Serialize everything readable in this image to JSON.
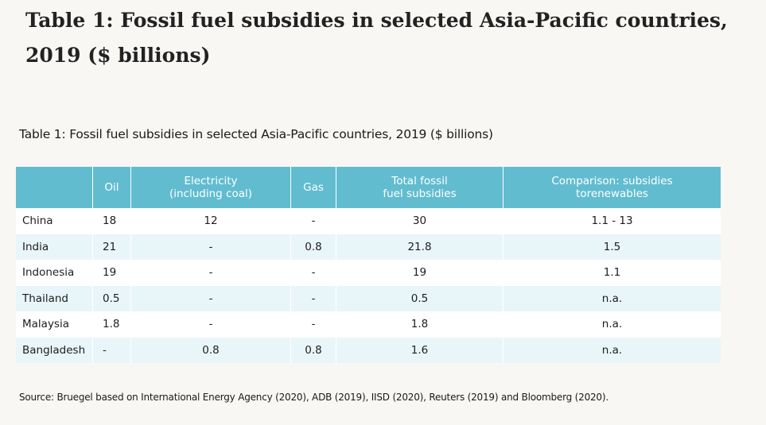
{
  "heading": "Table 1: Fossil fuel subsidies in selected Asia-Pacific countries, 2019 ($ billions)",
  "table": {
    "caption": "Table 1: Fossil fuel subsidies in selected Asia-Pacific countries, 2019 ($ billions)",
    "columns": [
      "",
      "Oil",
      "Electricity (including coal)",
      "Gas",
      "Total fossil fuel subsidies",
      "Comparison: subsidies torenewables"
    ],
    "rows": [
      [
        "China",
        "18",
        "12",
        "-",
        "30",
        "1.1 - 13"
      ],
      [
        "India",
        "21",
        "-",
        "0.8",
        "21.8",
        "1.5"
      ],
      [
        "Indonesia",
        "19",
        "-",
        "-",
        "19",
        "1.1"
      ],
      [
        "Thailand",
        "0.5",
        "-",
        "-",
        "0.5",
        "n.a."
      ],
      [
        "Malaysia",
        "1.8",
        "-",
        "-",
        "1.8",
        "n.a."
      ],
      [
        "Bangladesh",
        "-",
        "0.8",
        "0.8",
        "1.6",
        "n.a."
      ]
    ],
    "source": "Source: Bruegel based on International Energy Agency (2020), ADB (2019), IISD (2020), Reuters (2019) and Bloomberg (2020)."
  },
  "colors": {
    "header_bg": "#62bcd0",
    "stripe_bg": "#e9f6f9",
    "page_bg": "#f8f7f4"
  }
}
